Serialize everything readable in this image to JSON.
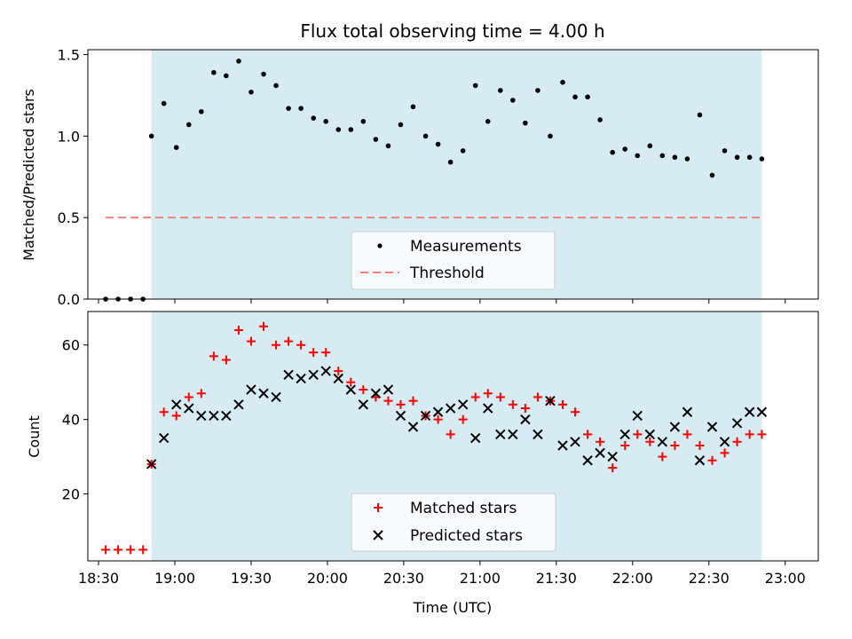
{
  "colors": {
    "shade": "#add8e6",
    "threshold": "#f08080",
    "measurement": "#000000",
    "matched": "#ff0000",
    "predicted": "#000000",
    "axis": "#000000"
  },
  "chart_data": [
    {
      "type": "scatter",
      "title": "Flux total observing time = 4.00 h",
      "xlabel": "",
      "ylabel": "Matched/Predicted stars",
      "xlim": [
        -4.2,
        283.0
      ],
      "ylim": [
        0,
        1.53
      ],
      "yticks": [
        0.0,
        0.5,
        1.0,
        1.5
      ],
      "ytick_labels": [
        "0.0",
        "0.5",
        "1.0",
        "1.5"
      ],
      "xticks": [
        0,
        30,
        60,
        90,
        120,
        150,
        180,
        210,
        240,
        270
      ],
      "x_units": "minutes after 18:30 UTC",
      "shaded_span": [
        20.8,
        260.8
      ],
      "threshold": {
        "x": [
          2.8,
          260.8
        ],
        "y": 0.5
      },
      "legend": {
        "position": "bottom-center",
        "entries": [
          "Measurements",
          "Threshold"
        ]
      },
      "series": [
        {
          "name": "Measurements",
          "x": [
            2.8,
            7.7,
            12.6,
            17.5,
            20.8,
            25.7,
            30.6,
            35.5,
            40.4,
            45.3,
            50.2,
            55.1,
            60.0,
            64.9,
            69.8,
            74.7,
            79.6,
            84.5,
            89.4,
            94.3,
            99.2,
            104.1,
            109.0,
            113.9,
            118.8,
            123.7,
            128.6,
            133.5,
            138.4,
            143.3,
            148.2,
            153.1,
            158.0,
            162.9,
            167.8,
            172.7,
            177.6,
            182.5,
            187.4,
            192.3,
            197.2,
            202.1,
            207.0,
            211.9,
            216.8,
            221.7,
            226.6,
            231.5,
            236.4,
            241.3,
            246.2,
            251.1,
            256.0,
            260.8
          ],
          "y": [
            0.0,
            0.0,
            0.0,
            0.0,
            1.0,
            1.2,
            0.93,
            1.07,
            1.15,
            1.39,
            1.37,
            1.46,
            1.27,
            1.38,
            1.31,
            1.17,
            1.17,
            1.11,
            1.09,
            1.04,
            1.04,
            1.09,
            0.98,
            0.94,
            1.07,
            1.18,
            1.0,
            0.95,
            0.84,
            0.91,
            1.31,
            1.09,
            1.28,
            1.22,
            1.08,
            1.28,
            1.0,
            1.33,
            1.24,
            1.24,
            1.1,
            0.9,
            0.92,
            0.88,
            0.94,
            0.88,
            0.87,
            0.86,
            1.13,
            0.76,
            0.91,
            0.87,
            0.87,
            0.86
          ]
        }
      ]
    },
    {
      "type": "scatter",
      "title": "",
      "xlabel": "Time (UTC)",
      "ylabel": "Count",
      "xlim": [
        -4.2,
        283.0
      ],
      "ylim": [
        2,
        69
      ],
      "yticks": [
        20,
        40,
        60
      ],
      "ytick_labels": [
        "20",
        "40",
        "60"
      ],
      "xticks": [
        0,
        30,
        60,
        90,
        120,
        150,
        180,
        210,
        240,
        270
      ],
      "xtick_labels": [
        "18:30",
        "19:00",
        "19:30",
        "20:00",
        "20:30",
        "21:00",
        "21:30",
        "22:00",
        "22:30",
        "23:00"
      ],
      "x_units": "minutes after 18:30 UTC",
      "shaded_span": [
        20.8,
        260.8
      ],
      "legend": {
        "position": "bottom-center",
        "entries": [
          "Matched stars",
          "Predicted stars"
        ]
      },
      "series": [
        {
          "name": "Matched stars",
          "marker": "+",
          "x": [
            2.8,
            7.7,
            12.6,
            17.5,
            20.8,
            25.7,
            30.6,
            35.5,
            40.4,
            45.3,
            50.2,
            55.1,
            60.0,
            64.9,
            69.8,
            74.7,
            79.6,
            84.5,
            89.4,
            94.3,
            99.2,
            104.1,
            109.0,
            113.9,
            118.8,
            123.7,
            128.6,
            133.5,
            138.4,
            143.3,
            148.2,
            153.1,
            158.0,
            162.9,
            167.8,
            172.7,
            177.6,
            182.5,
            187.4,
            192.3,
            197.2,
            202.1,
            207.0,
            211.9,
            216.8,
            221.7,
            226.6,
            231.5,
            236.4,
            241.3,
            246.2,
            251.1,
            256.0,
            260.8
          ],
          "y": [
            5,
            5,
            5,
            5,
            28,
            42,
            41,
            46,
            47,
            57,
            56,
            64,
            61,
            65,
            60,
            61,
            60,
            58,
            58,
            53,
            50,
            48,
            46,
            45,
            44,
            45,
            41,
            40,
            36,
            40,
            46,
            47,
            46,
            44,
            43,
            46,
            45,
            44,
            42,
            36,
            34,
            27,
            33,
            36,
            34,
            30,
            33,
            36,
            33,
            29,
            31,
            34,
            36,
            36
          ]
        },
        {
          "name": "Predicted stars",
          "marker": "x",
          "x": [
            20.8,
            25.7,
            30.6,
            35.5,
            40.4,
            45.3,
            50.2,
            55.1,
            60.0,
            64.9,
            69.8,
            74.7,
            79.6,
            84.5,
            89.4,
            94.3,
            99.2,
            104.1,
            109.0,
            113.9,
            118.8,
            123.7,
            128.6,
            133.5,
            138.4,
            143.3,
            148.2,
            153.1,
            158.0,
            162.9,
            167.8,
            172.7,
            177.6,
            182.5,
            187.4,
            192.3,
            197.2,
            202.1,
            207.0,
            211.9,
            216.8,
            221.7,
            226.6,
            231.5,
            236.4,
            241.3,
            246.2,
            251.1,
            256.0,
            260.8
          ],
          "y": [
            28,
            35,
            44,
            43,
            41,
            41,
            41,
            44,
            48,
            47,
            46,
            52,
            51,
            52,
            53,
            51,
            48,
            44,
            47,
            48,
            41,
            38,
            41,
            42,
            43,
            44,
            35,
            43,
            36,
            36,
            40,
            36,
            45,
            33,
            34,
            29,
            31,
            30,
            36,
            41,
            36,
            34,
            38,
            42,
            29,
            38,
            34,
            39,
            42,
            42
          ]
        }
      ]
    }
  ]
}
